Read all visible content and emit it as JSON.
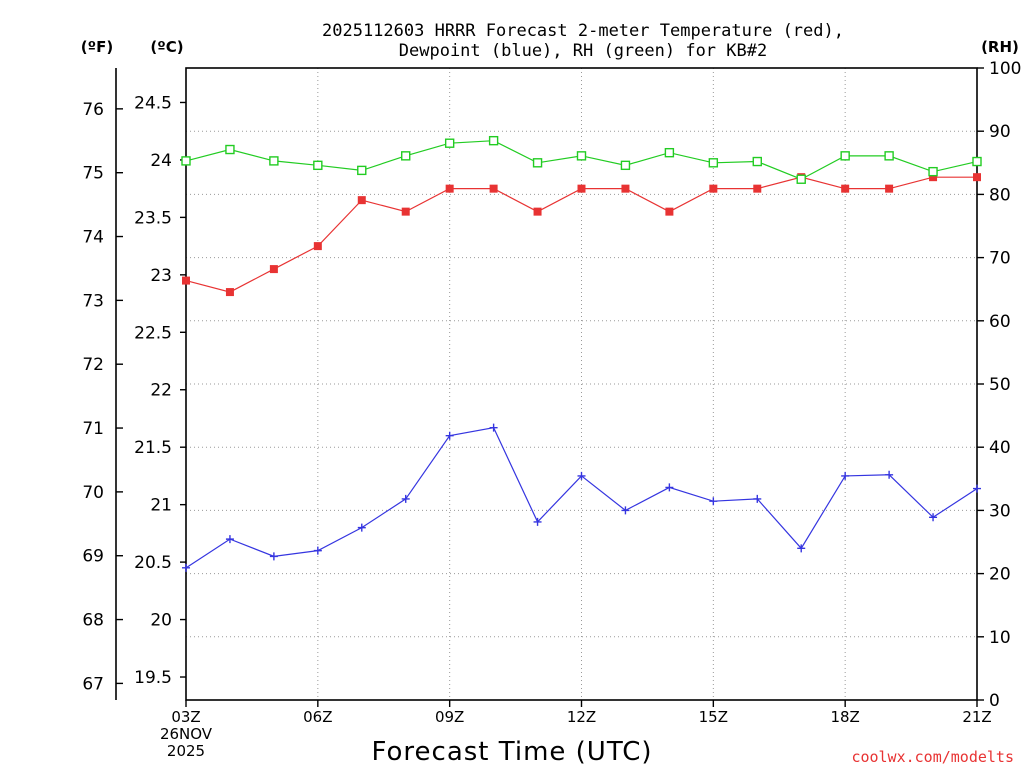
{
  "chart_data": {
    "type": "line",
    "title_line1": "2025112603 HRRR Forecast 2-meter Temperature (red),",
    "title_line2": "Dewpoint (blue), RH (green) for KB#2",
    "xlabel": "Forecast Time (UTC)",
    "left_unit_f": "(ºF)",
    "left_unit_c": "(ºC)",
    "right_unit": "(RH)",
    "date_line1": "26NOV",
    "date_line2": "2025",
    "watermark": "coolwx.com/modelts",
    "x": [
      3,
      4,
      5,
      6,
      7,
      8,
      9,
      10,
      11,
      12,
      13,
      14,
      15,
      16,
      17,
      18,
      19,
      20,
      21
    ],
    "xlim": [
      3,
      21
    ],
    "x_ticks": [
      {
        "value": 3,
        "label": "03Z"
      },
      {
        "value": 6,
        "label": "06Z"
      },
      {
        "value": 9,
        "label": "09Z"
      },
      {
        "value": 12,
        "label": "12Z"
      },
      {
        "value": 15,
        "label": "15Z"
      },
      {
        "value": 18,
        "label": "18Z"
      },
      {
        "value": 21,
        "label": "21Z"
      }
    ],
    "celsius_axis": {
      "ylim": [
        19.3,
        24.8
      ],
      "ticks": [
        "19.5",
        "20",
        "20.5",
        "21",
        "21.5",
        "22",
        "22.5",
        "23",
        "23.5",
        "24",
        "24.5"
      ]
    },
    "fahrenheit_axis": {
      "ticks": [
        "67",
        "68",
        "69",
        "70",
        "71",
        "72",
        "73",
        "74",
        "75",
        "76"
      ]
    },
    "rh_axis": {
      "ylim": [
        0,
        100
      ],
      "ticks": [
        "0",
        "10",
        "20",
        "30",
        "40",
        "50",
        "60",
        "70",
        "80",
        "90",
        "100"
      ]
    },
    "series": [
      {
        "name": "Temperature",
        "axis": "celsius",
        "color": "#e83333",
        "marker": "filled-square",
        "values": [
          22.95,
          22.85,
          23.05,
          23.25,
          23.65,
          23.55,
          23.75,
          23.75,
          23.55,
          23.75,
          23.75,
          23.55,
          23.75,
          23.75,
          23.85,
          23.75,
          23.75,
          23.85,
          23.85
        ]
      },
      {
        "name": "Dewpoint",
        "axis": "celsius",
        "color": "#3535e0",
        "marker": "plus",
        "values": [
          20.45,
          20.7,
          20.55,
          20.6,
          20.8,
          21.05,
          21.6,
          21.67,
          20.85,
          21.25,
          20.95,
          21.15,
          21.03,
          21.05,
          20.62,
          21.25,
          21.26,
          20.89,
          21.14
        ]
      },
      {
        "name": "RH",
        "axis": "rh",
        "color": "#22cc22",
        "marker": "open-square",
        "values": [
          85.3,
          87.1,
          85.3,
          84.6,
          83.8,
          86.1,
          88.1,
          88.5,
          85.0,
          86.1,
          84.6,
          86.6,
          85.0,
          85.2,
          82.4,
          86.1,
          86.1,
          83.6,
          85.2
        ]
      }
    ]
  }
}
